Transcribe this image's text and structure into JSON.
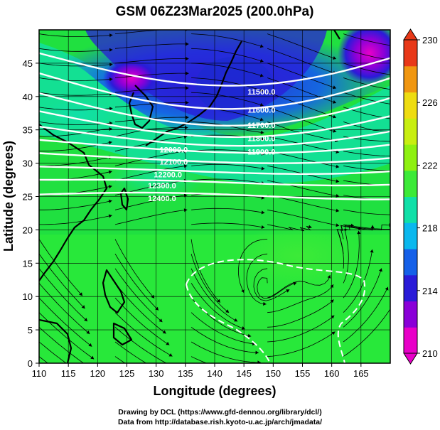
{
  "chart_data": {
    "type": "heatmap",
    "title": "GSM 06Z23Mar2025 (200.0hPa)",
    "xlabel": "Longitude (degrees)",
    "ylabel": "Latitude (degrees)",
    "xlim": [
      110,
      170
    ],
    "ylim": [
      0,
      50
    ],
    "x_ticks": [
      110,
      115,
      120,
      125,
      130,
      135,
      140,
      145,
      150,
      155,
      160,
      165
    ],
    "y_ticks": [
      0,
      5,
      10,
      15,
      20,
      25,
      30,
      35,
      40,
      45
    ],
    "colorbar": {
      "min": 210,
      "max": 230,
      "ticks": [
        210,
        214,
        218,
        222,
        226,
        230
      ],
      "colors": [
        "#e800c8",
        "#8a00d8",
        "#2a1bd8",
        "#1560e8",
        "#0ab8ee",
        "#10e0a8",
        "#3cea38",
        "#8ef010",
        "#c8ee10",
        "#eedc10",
        "#f09610",
        "#e83818"
      ]
    },
    "contour_labels": [
      "11500.0",
      "11600.0",
      "11700.0",
      "11800.0",
      "11900.0",
      "12000.0",
      "12100.0",
      "12200.0",
      "12300.0",
      "12400.0"
    ],
    "grid": true,
    "streamlines": true,
    "coastlines": true
  },
  "footer": {
    "credit_line1": "Drawing by DCL (https://www.gfd-dennou.org/library/dcl/)",
    "credit_line2": "Data from http://database.rish.kyoto-u.ac.jp/arch/jmadata/"
  }
}
